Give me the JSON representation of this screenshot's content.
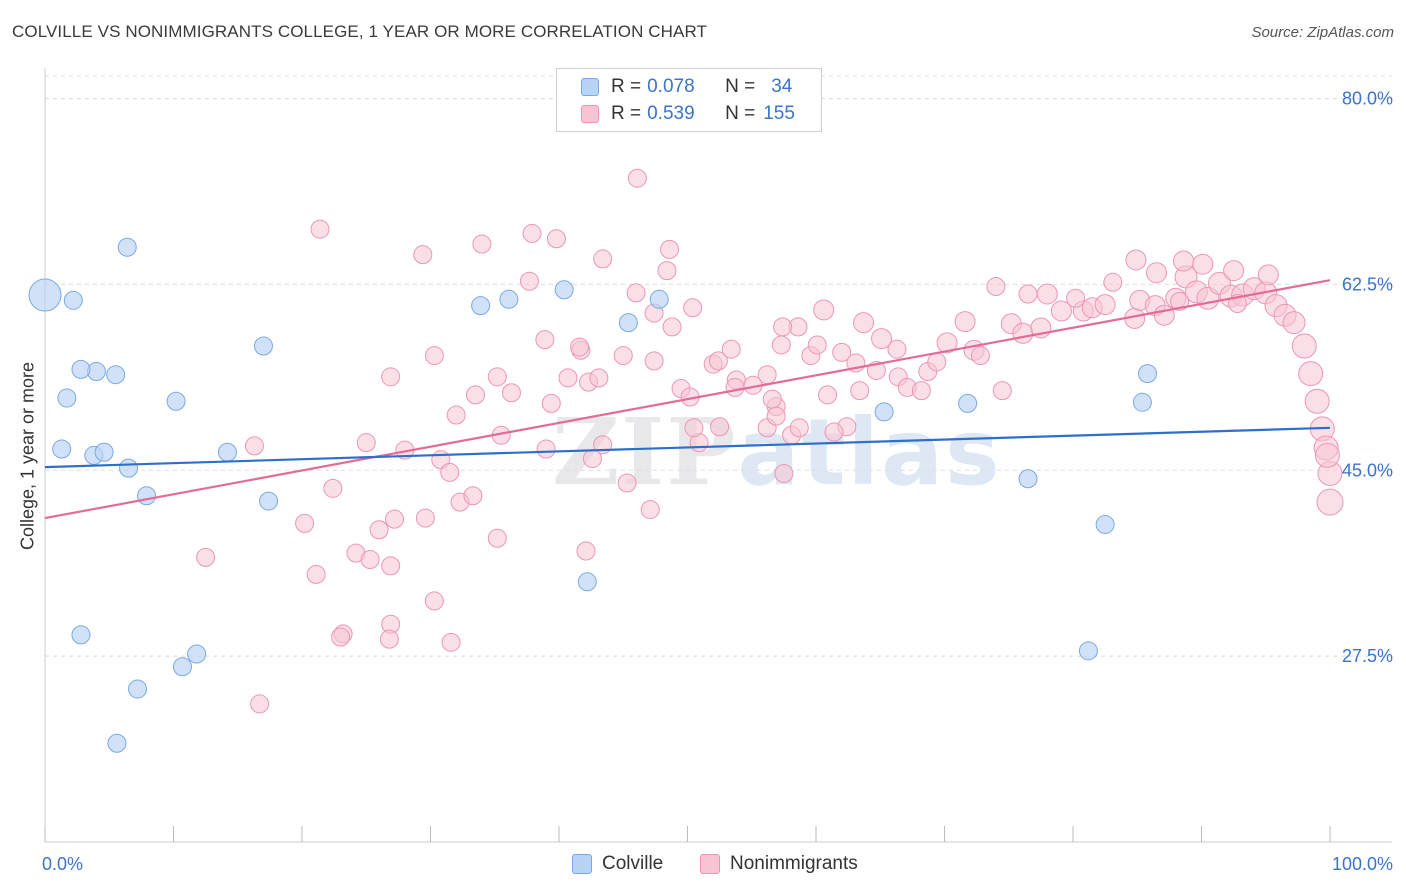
{
  "header": {
    "title": "COLVILLE VS NONIMMIGRANTS COLLEGE, 1 YEAR OR MORE CORRELATION CHART",
    "source": "Source: ZipAtlas.com"
  },
  "watermark": {
    "zip": "ZIP",
    "atlas": "atlas"
  },
  "legend": {
    "series": [
      {
        "r_label": "R =",
        "r_value": "0.078",
        "n_label": "N =",
        "n_value": "34"
      },
      {
        "r_label": "R =",
        "r_value": "0.539",
        "n_label": "N =",
        "n_value": "155"
      }
    ]
  },
  "bottom_legend": {
    "colville": "Colville",
    "nonimmigrants": "Nonimmigrants"
  },
  "colors": {
    "colville_fill": "#b8d3f4",
    "colville_stroke": "#7aaae0",
    "colville_line": "#2f6fcc",
    "nonimm_fill": "#f8c4d4",
    "nonimm_stroke": "#ec96b3",
    "nonimm_line": "#e36b97",
    "axis_tick_label": "#3b74c8",
    "grid": "#dcdcdc"
  },
  "chart_data": {
    "type": "scatter",
    "title": "COLVILLE VS NONIMMIGRANTS COLLEGE, 1 YEAR OR MORE CORRELATION CHART",
    "xlabel": "",
    "ylabel": "College, 1 year or more",
    "xlim": [
      0,
      100
    ],
    "ylim": [
      10,
      82.5
    ],
    "x_tick_labels": [
      {
        "value": 0,
        "label": "0.0%"
      },
      {
        "value": 100,
        "label": "100.0%"
      }
    ],
    "x_minor_ticks": [
      10,
      20,
      30,
      40,
      50,
      60,
      70,
      80,
      90
    ],
    "y_ticks": [
      {
        "value": 27.5,
        "label": "27.5%"
      },
      {
        "value": 45.0,
        "label": "45.0%"
      },
      {
        "value": 62.5,
        "label": "62.5%"
      },
      {
        "value": 80.0,
        "label": "80.0%"
      }
    ],
    "series": [
      {
        "name": "Colville",
        "R": 0.078,
        "N": 34,
        "trend": {
          "x": [
            0,
            100
          ],
          "y": [
            45.3,
            49.0
          ]
        },
        "points": [
          [
            0,
            61.5,
            16
          ],
          [
            2.2,
            61.0,
            9
          ],
          [
            1.7,
            51.8,
            9
          ],
          [
            1.3,
            47.0,
            9
          ],
          [
            4.0,
            54.3,
            9
          ],
          [
            5.5,
            54.0,
            9
          ],
          [
            2.8,
            54.5,
            9
          ],
          [
            3.8,
            46.4,
            9
          ],
          [
            4.6,
            46.7,
            9
          ],
          [
            6.5,
            45.2,
            9
          ],
          [
            7.9,
            42.6,
            9
          ],
          [
            10.2,
            51.5,
            9
          ],
          [
            14.2,
            46.7,
            9
          ],
          [
            17.0,
            56.7,
            9
          ],
          [
            17.4,
            42.1,
            9
          ],
          [
            6.4,
            66.0,
            9
          ],
          [
            2.8,
            29.5,
            9
          ],
          [
            7.2,
            24.4,
            9
          ],
          [
            10.7,
            26.5,
            9
          ],
          [
            11.8,
            27.7,
            9
          ],
          [
            5.6,
            19.3,
            9
          ],
          [
            33.9,
            60.5,
            9
          ],
          [
            36.1,
            61.1,
            9
          ],
          [
            40.4,
            62.0,
            9
          ],
          [
            45.4,
            58.9,
            9
          ],
          [
            47.8,
            61.1,
            9
          ],
          [
            42.2,
            34.5,
            9
          ],
          [
            65.3,
            50.5,
            9
          ],
          [
            81.2,
            28.0,
            9
          ],
          [
            71.8,
            51.3,
            9
          ],
          [
            76.5,
            44.2,
            9
          ],
          [
            82.5,
            39.9,
            9
          ],
          [
            85.4,
            51.4,
            9
          ],
          [
            85.8,
            54.1,
            9
          ]
        ]
      },
      {
        "name": "Nonimmigrants",
        "R": 0.539,
        "N": 155,
        "trend": {
          "x": [
            0,
            100
          ],
          "y": [
            40.5,
            62.9
          ]
        },
        "points": [
          [
            21.4,
            67.7,
            9
          ],
          [
            29.4,
            65.3,
            9
          ],
          [
            34.0,
            66.3,
            9
          ],
          [
            37.9,
            67.3,
            9
          ],
          [
            39.8,
            66.8,
            9
          ],
          [
            43.4,
            64.9,
            9
          ],
          [
            46.1,
            72.5,
            9
          ],
          [
            48.6,
            65.8,
            9
          ],
          [
            48.4,
            63.8,
            9
          ],
          [
            37.7,
            62.8,
            9
          ],
          [
            46.0,
            61.7,
            9
          ],
          [
            47.4,
            59.8,
            9
          ],
          [
            50.4,
            60.3,
            9
          ],
          [
            49.5,
            52.7,
            9
          ],
          [
            47.4,
            55.3,
            9
          ],
          [
            45.0,
            55.8,
            9
          ],
          [
            41.7,
            56.3,
            9
          ],
          [
            42.3,
            53.3,
            9
          ],
          [
            40.7,
            53.7,
            9
          ],
          [
            43.1,
            53.7,
            9
          ],
          [
            39.4,
            51.3,
            9
          ],
          [
            38.9,
            57.3,
            9
          ],
          [
            30.3,
            55.8,
            9
          ],
          [
            26.9,
            53.8,
            9
          ],
          [
            35.2,
            53.8,
            9
          ],
          [
            36.3,
            52.3,
            9
          ],
          [
            33.5,
            52.1,
            9
          ],
          [
            32.0,
            50.2,
            9
          ],
          [
            35.5,
            48.3,
            9
          ],
          [
            25.0,
            47.6,
            9
          ],
          [
            28.0,
            46.9,
            9
          ],
          [
            30.8,
            46.0,
            9
          ],
          [
            31.5,
            44.8,
            9
          ],
          [
            16.3,
            47.3,
            9
          ],
          [
            12.5,
            36.8,
            9
          ],
          [
            20.2,
            40.0,
            9
          ],
          [
            21.1,
            35.2,
            9
          ],
          [
            22.4,
            43.3,
            9
          ],
          [
            24.2,
            37.2,
            9
          ],
          [
            25.3,
            36.6,
            9
          ],
          [
            26.0,
            39.4,
            9
          ],
          [
            26.9,
            36.0,
            9
          ],
          [
            27.2,
            40.4,
            9
          ],
          [
            29.6,
            40.5,
            9
          ],
          [
            30.3,
            32.7,
            9
          ],
          [
            32.3,
            42.0,
            9
          ],
          [
            33.3,
            42.6,
            9
          ],
          [
            35.2,
            38.6,
            9
          ],
          [
            31.6,
            28.8,
            9
          ],
          [
            26.9,
            30.5,
            9
          ],
          [
            23.2,
            29.6,
            9
          ],
          [
            16.7,
            23.0,
            9
          ],
          [
            23.0,
            29.3,
            9
          ],
          [
            26.8,
            29.1,
            9
          ],
          [
            39.0,
            47.0,
            9
          ],
          [
            43.4,
            47.4,
            9
          ],
          [
            42.6,
            46.1,
            9
          ],
          [
            45.3,
            43.8,
            9
          ],
          [
            42.1,
            37.4,
            9
          ],
          [
            47.1,
            41.3,
            9
          ],
          [
            41.6,
            56.6,
            9
          ],
          [
            48.8,
            58.5,
            9
          ],
          [
            52.0,
            55.0,
            9
          ],
          [
            52.4,
            55.3,
            9
          ],
          [
            53.8,
            53.5,
            9
          ],
          [
            53.4,
            56.4,
            9
          ],
          [
            57.3,
            56.8,
            9
          ],
          [
            56.2,
            54.0,
            9
          ],
          [
            58.6,
            58.5,
            9
          ],
          [
            59.6,
            55.8,
            9
          ],
          [
            60.1,
            56.8,
            9
          ],
          [
            62.0,
            56.1,
            9
          ],
          [
            63.1,
            55.1,
            9
          ],
          [
            66.3,
            56.4,
            9
          ],
          [
            68.7,
            54.3,
            9
          ],
          [
            63.4,
            52.5,
            9
          ],
          [
            64.7,
            54.4,
            9
          ],
          [
            66.4,
            53.8,
            9
          ],
          [
            67.1,
            52.8,
            9
          ],
          [
            55.1,
            53.0,
            9
          ],
          [
            56.9,
            51.0,
            9
          ],
          [
            56.6,
            51.7,
            9
          ],
          [
            60.9,
            52.1,
            9
          ],
          [
            62.4,
            49.1,
            9
          ],
          [
            61.4,
            48.6,
            9
          ],
          [
            53.7,
            52.8,
            9
          ],
          [
            50.2,
            51.9,
            9
          ],
          [
            50.9,
            47.6,
            9
          ],
          [
            50.5,
            49.0,
            9
          ],
          [
            56.2,
            49.0,
            9
          ],
          [
            56.9,
            50.1,
            9
          ],
          [
            58.1,
            48.3,
            9
          ],
          [
            58.7,
            49.0,
            9
          ],
          [
            57.5,
            44.7,
            9
          ],
          [
            52.5,
            49.1,
            9
          ],
          [
            60.6,
            60.1,
            10
          ],
          [
            57.4,
            58.5,
            9
          ],
          [
            63.7,
            58.9,
            10
          ],
          [
            65.1,
            57.4,
            10
          ],
          [
            70.2,
            57.0,
            10
          ],
          [
            72.3,
            56.3,
            10
          ],
          [
            71.6,
            59.0,
            10
          ],
          [
            75.2,
            58.8,
            10
          ],
          [
            76.1,
            57.9,
            10
          ],
          [
            77.5,
            58.4,
            10
          ],
          [
            78.0,
            61.6,
            10
          ],
          [
            79.1,
            60.0,
            10
          ],
          [
            80.8,
            60.0,
            10
          ],
          [
            81.5,
            60.3,
            10
          ],
          [
            82.5,
            60.6,
            10
          ],
          [
            84.8,
            59.3,
            10
          ],
          [
            85.2,
            61.0,
            10
          ],
          [
            86.4,
            60.5,
            10
          ],
          [
            87.1,
            59.6,
            10
          ],
          [
            88.0,
            61.2,
            10
          ],
          [
            88.8,
            63.2,
            11
          ],
          [
            89.6,
            61.8,
            11
          ],
          [
            90.5,
            61.2,
            11
          ],
          [
            91.4,
            62.6,
            11
          ],
          [
            92.3,
            61.4,
            11
          ],
          [
            93.2,
            61.5,
            11
          ],
          [
            94.1,
            62.1,
            11
          ],
          [
            95.0,
            61.7,
            11
          ],
          [
            95.8,
            60.5,
            11
          ],
          [
            96.5,
            59.6,
            11
          ],
          [
            97.2,
            58.9,
            11
          ],
          [
            98.0,
            56.7,
            12
          ],
          [
            98.5,
            54.1,
            12
          ],
          [
            99.0,
            51.5,
            12
          ],
          [
            99.4,
            48.9,
            12
          ],
          [
            99.7,
            47.1,
            12
          ],
          [
            100.0,
            44.7,
            12
          ],
          [
            100.0,
            42.0,
            13
          ],
          [
            99.8,
            46.4,
            12
          ],
          [
            84.9,
            64.8,
            10
          ],
          [
            86.5,
            63.6,
            10
          ],
          [
            88.6,
            64.7,
            10
          ],
          [
            90.1,
            64.4,
            10
          ],
          [
            92.5,
            63.8,
            10
          ],
          [
            95.2,
            63.4,
            10
          ],
          [
            74.0,
            62.3,
            9
          ],
          [
            76.5,
            61.6,
            9
          ],
          [
            80.2,
            61.2,
            9
          ],
          [
            83.1,
            62.7,
            9
          ],
          [
            88.3,
            60.9,
            9
          ],
          [
            72.8,
            55.8,
            9
          ],
          [
            69.4,
            55.2,
            9
          ],
          [
            68.2,
            52.5,
            9
          ],
          [
            74.5,
            52.5,
            9
          ],
          [
            92.8,
            60.7,
            9
          ]
        ]
      }
    ]
  }
}
